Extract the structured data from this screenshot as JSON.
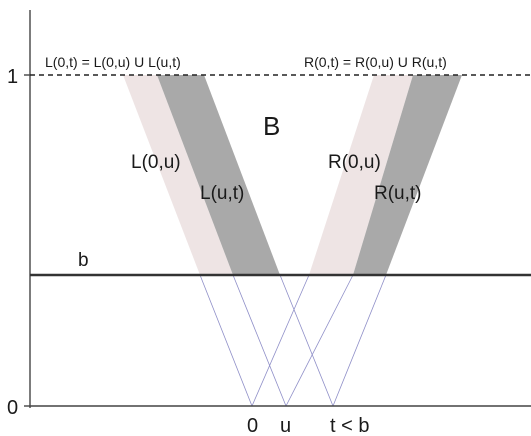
{
  "diagram": {
    "top_left_equation": "L(0,t) = L(0,u) U L(u,t)",
    "top_right_equation": "R(0,t) = R(0,u) U R(u,t)",
    "region_label": "B",
    "left_inner_label": "L(0,u)",
    "left_outer_label": "L(u,t)",
    "right_inner_label": "R(0,u)",
    "right_outer_label": "R(u,t)",
    "barrier_label": "b",
    "y_axis_top_label": "1",
    "y_axis_bottom_label": "0",
    "x_label_zero": "0",
    "x_label_u": "u",
    "x_label_t": "t < b"
  },
  "colors": {
    "light_band": "#eee4e4",
    "dark_band": "#a9a9a9",
    "thin_lines": "#8f8fc8",
    "axes": "#444444"
  }
}
